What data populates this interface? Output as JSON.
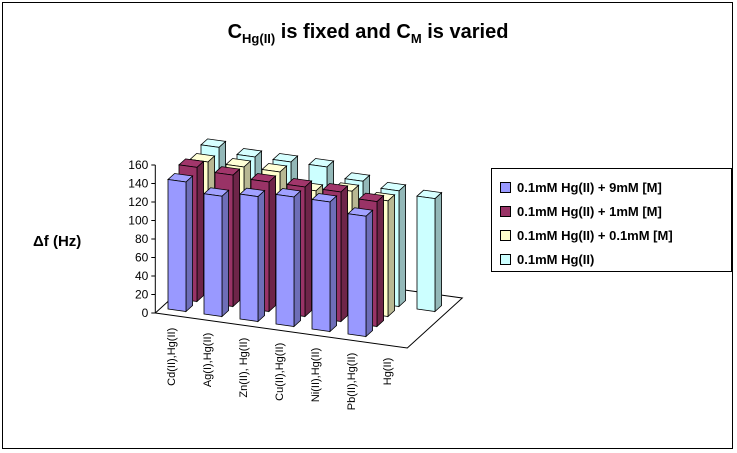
{
  "chart_data": {
    "type": "bar",
    "subtype": "3d-clustered-column",
    "title": {
      "parts": [
        {
          "text": "C",
          "sub": false
        },
        {
          "text": "Hg(II)",
          "sub": true
        },
        {
          "text": " is fixed and C",
          "sub": false
        },
        {
          "text": "M",
          "sub": true
        },
        {
          "text": " is varied",
          "sub": false
        }
      ]
    },
    "ylabel": "Δf (Hz)",
    "ylim": [
      0,
      160
    ],
    "yticks": [
      "0",
      "20",
      "40",
      "60",
      "80",
      "100",
      "120",
      "140",
      "160"
    ],
    "categories": [
      "Cd(II),Hg(II)",
      "Ag(I),Hg(II)",
      "Zn(II), Hg(II)",
      "Cu(II),Hg(II)",
      "Ni(II),Hg(II)",
      "Pb(II),Hg(II)",
      "Hg(II)"
    ],
    "series": [
      {
        "name": "0.1mM Hg(II) + 9mM [M]",
        "color": "#9999ff",
        "values": [
          140,
          130,
          135,
          140,
          140,
          130,
          0
        ]
      },
      {
        "name": "0.1mM Hg(II) + 1mM [M]",
        "color": "#993366",
        "values": [
          145,
          142,
          140,
          140,
          140,
          135,
          0
        ]
      },
      {
        "name": "0.1mM Hg(II) + 0.1mM [M]",
        "color": "#ffffcc",
        "values": [
          140,
          140,
          140,
          125,
          130,
          125,
          0
        ]
      },
      {
        "name": "0.1mM Hg(II)",
        "color": "#ccffff",
        "values": [
          145,
          140,
          140,
          140,
          130,
          125,
          122
        ]
      }
    ],
    "legend_position": "right",
    "grid": false
  }
}
